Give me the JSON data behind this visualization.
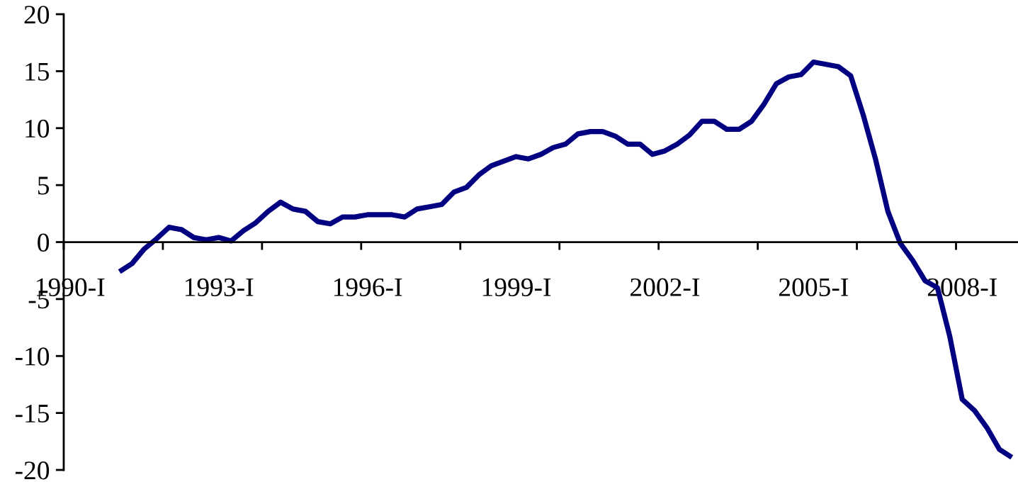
{
  "chart_data": {
    "type": "line",
    "categories": [
      "1990-I",
      null,
      null,
      null,
      null,
      null,
      null,
      null,
      null,
      null,
      null,
      null,
      "1993-I",
      null,
      null,
      null,
      null,
      null,
      null,
      null,
      null,
      null,
      null,
      null,
      "1996-I",
      null,
      null,
      null,
      null,
      null,
      null,
      null,
      null,
      null,
      null,
      null,
      "1999-I",
      null,
      null,
      null,
      null,
      null,
      null,
      null,
      null,
      null,
      null,
      null,
      "2002-I",
      null,
      null,
      null,
      null,
      null,
      null,
      null,
      null,
      null,
      null,
      null,
      "2005-I",
      null,
      null,
      null,
      null,
      null,
      null,
      null,
      null,
      null,
      null,
      null,
      "2008-I",
      null,
      null,
      null,
      null
    ],
    "series": [
      {
        "color": "#000080",
        "values": [
          null,
          null,
          null,
          null,
          -2.6,
          -1.9,
          -0.6,
          0.3,
          1.3,
          1.1,
          0.4,
          0.2,
          0.4,
          0.1,
          1.0,
          1.7,
          2.7,
          3.5,
          2.9,
          2.7,
          1.8,
          1.6,
          2.2,
          2.2,
          2.4,
          2.4,
          2.4,
          2.2,
          2.9,
          3.1,
          3.3,
          4.4,
          4.8,
          5.9,
          6.7,
          7.1,
          7.5,
          7.3,
          7.7,
          8.3,
          8.6,
          9.5,
          9.7,
          9.7,
          9.3,
          8.6,
          8.6,
          7.7,
          8.0,
          8.6,
          9.4,
          10.6,
          10.6,
          9.9,
          9.9,
          10.6,
          12.1,
          13.9,
          14.5,
          14.7,
          15.8,
          15.6,
          15.4,
          14.6,
          11.2,
          7.3,
          2.7,
          -0.1,
          -1.6,
          -3.4,
          -4.0,
          -8.3,
          -13.8,
          -14.8,
          -16.3,
          -18.2,
          -18.9
        ]
      }
    ],
    "ylim": [
      -20,
      20
    ],
    "yticks": [
      -20,
      -15,
      -10,
      -5,
      0,
      5,
      10,
      15,
      20
    ],
    "line_style": "solid",
    "marker": "none",
    "legend": false,
    "grid": false
  }
}
